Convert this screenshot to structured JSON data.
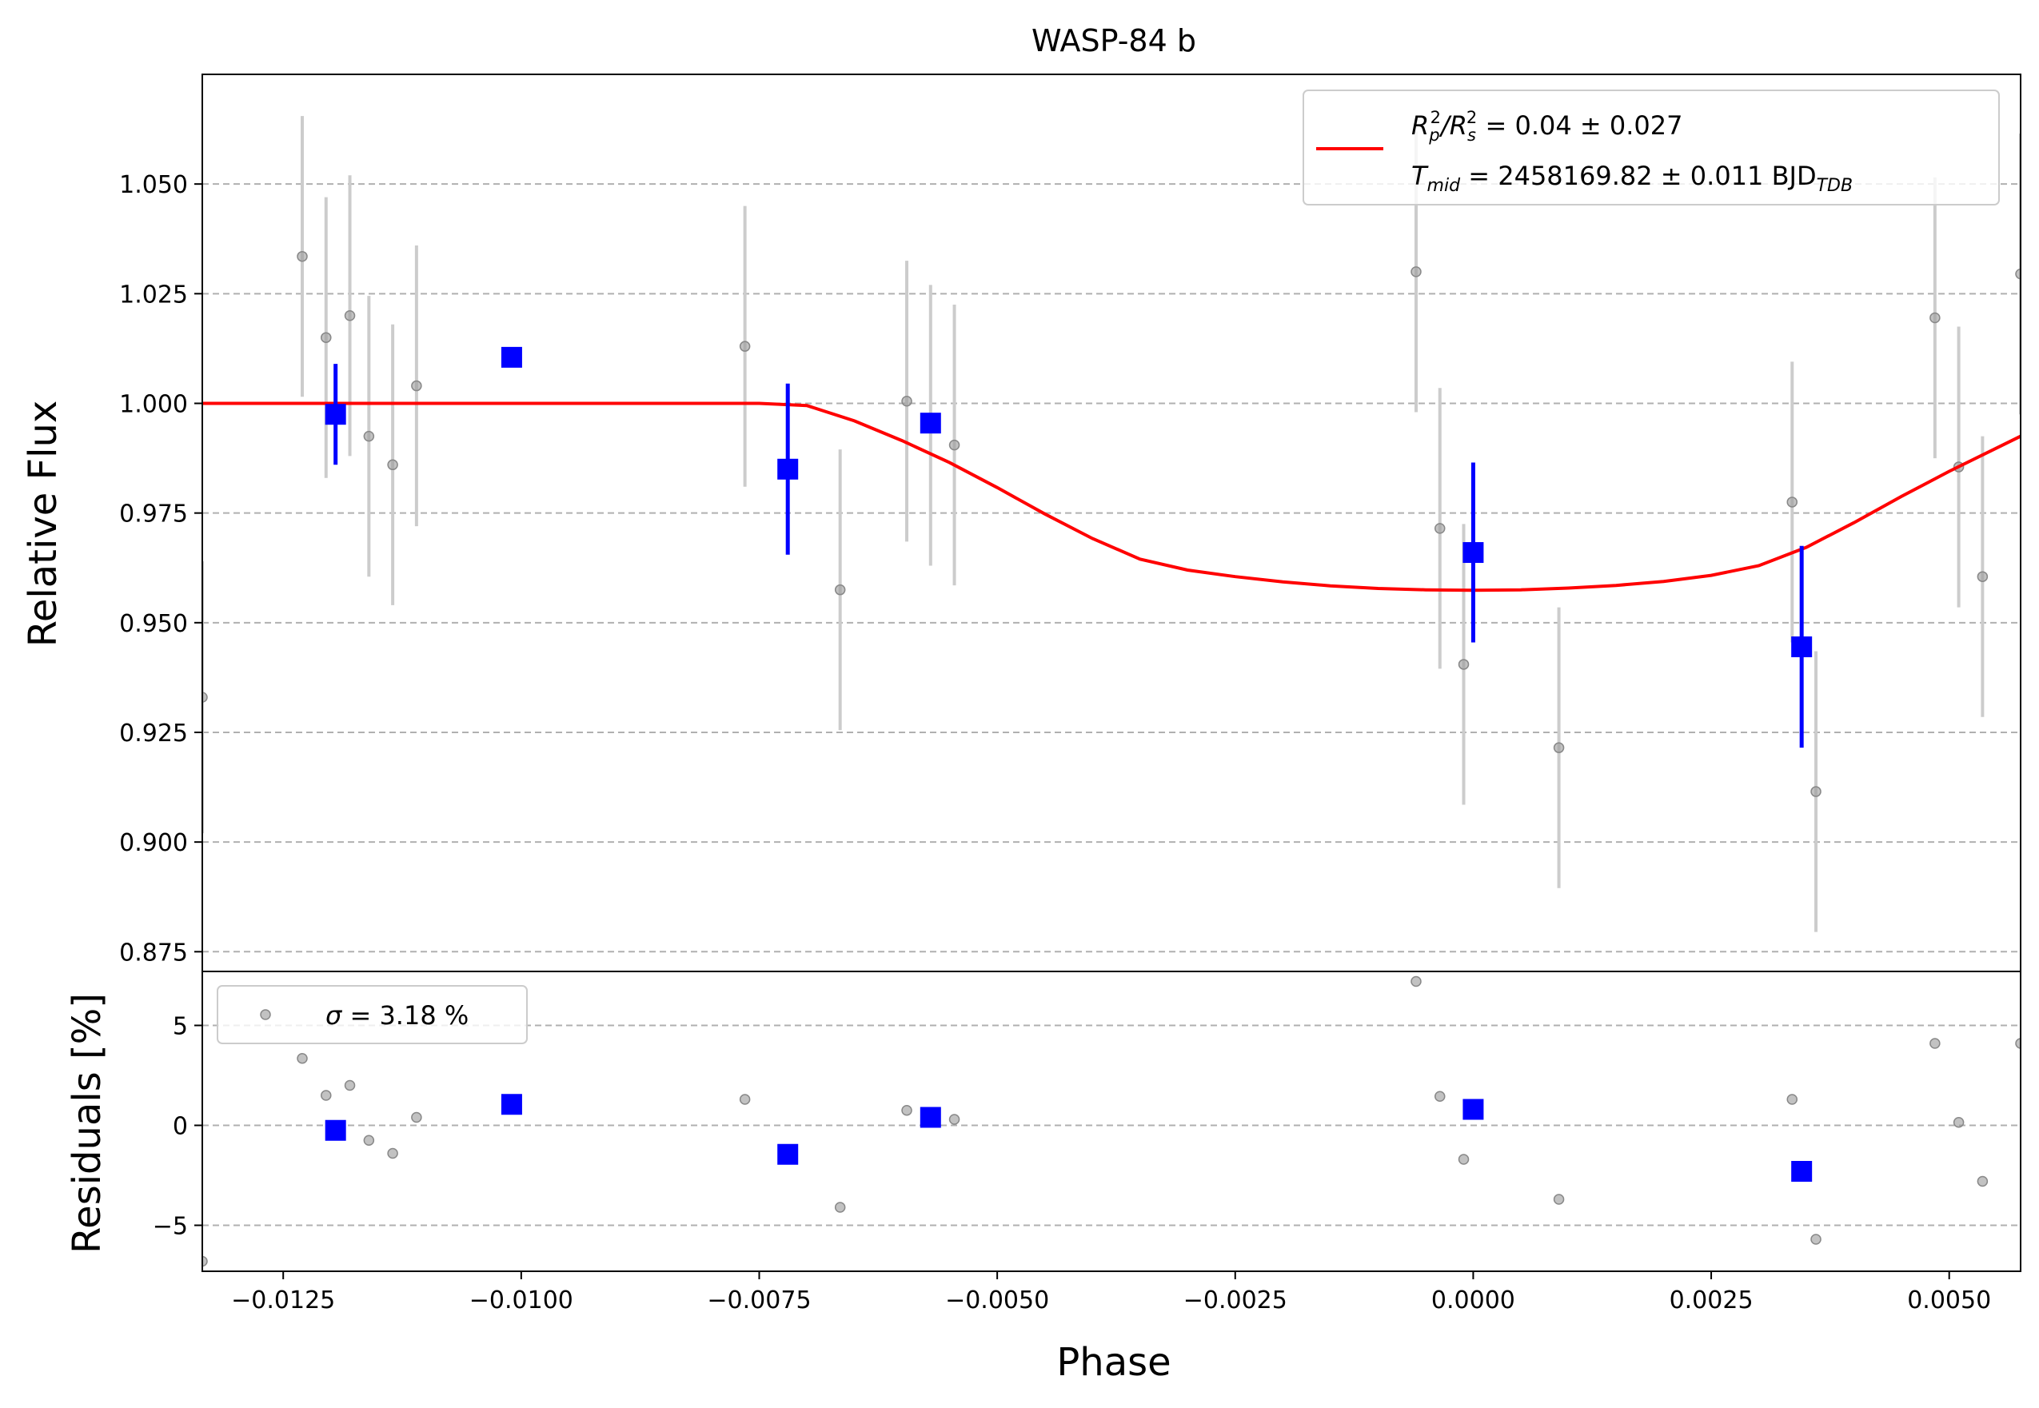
{
  "chart_data": {
    "type": "scatter",
    "title": "WASP-84 b",
    "xlabel": "Phase",
    "colors": {
      "raw": "#999999",
      "raw_err": "#cccccc",
      "binned": "#0000ff",
      "model": "#ff0000",
      "grid": "#b0b0b0"
    },
    "xlim": [
      -0.01335,
      0.00575
    ],
    "x_ticks": [
      -0.0125,
      -0.01,
      -0.0075,
      -0.005,
      -0.0025,
      0.0,
      0.0025,
      0.005
    ],
    "x_tick_labels": [
      "−0.0125",
      "−0.0100",
      "−0.0075",
      "−0.0050",
      "−0.0025",
      "0.0000",
      "0.0025",
      "0.0050"
    ],
    "top_panel": {
      "ylabel": "Relative Flux",
      "ylim": [
        0.8705,
        1.075
      ],
      "y_ticks": [
        0.875,
        0.9,
        0.925,
        0.95,
        0.975,
        1.0,
        1.025,
        1.05
      ],
      "y_tick_labels": [
        "0.875",
        "0.900",
        "0.925",
        "0.950",
        "0.975",
        "1.000",
        "1.025",
        "1.050"
      ],
      "raw_points": [
        {
          "x": -0.01335,
          "y": 0.933,
          "err": 0.031
        },
        {
          "x": -0.0123,
          "y": 1.0335,
          "err": 0.032
        },
        {
          "x": -0.01205,
          "y": 1.015,
          "err": 0.032
        },
        {
          "x": -0.0118,
          "y": 1.02,
          "err": 0.032
        },
        {
          "x": -0.0116,
          "y": 0.9925,
          "err": 0.032
        },
        {
          "x": -0.01135,
          "y": 0.986,
          "err": 0.032
        },
        {
          "x": -0.0111,
          "y": 1.004,
          "err": 0.032
        },
        {
          "x": -0.00765,
          "y": 1.013,
          "err": 0.032
        },
        {
          "x": -0.00665,
          "y": 0.9575,
          "err": 0.032
        },
        {
          "x": -0.00595,
          "y": 1.0005,
          "err": 0.032
        },
        {
          "x": -0.0057,
          "y": 0.995,
          "err": 0.032
        },
        {
          "x": -0.00545,
          "y": 0.9905,
          "err": 0.032
        },
        {
          "x": -0.0006,
          "y": 1.03,
          "err": 0.032
        },
        {
          "x": -0.00035,
          "y": 0.9715,
          "err": 0.032
        },
        {
          "x": -0.0001,
          "y": 0.9405,
          "err": 0.032
        },
        {
          "x": 0.0009,
          "y": 0.9215,
          "err": 0.032
        },
        {
          "x": 0.00335,
          "y": 0.9775,
          "err": 0.032
        },
        {
          "x": 0.0036,
          "y": 0.9115,
          "err": 0.032
        },
        {
          "x": 0.00485,
          "y": 1.0195,
          "err": 0.032
        },
        {
          "x": 0.0051,
          "y": 0.9855,
          "err": 0.032
        },
        {
          "x": 0.00535,
          "y": 0.9605,
          "err": 0.032
        },
        {
          "x": 0.00575,
          "y": 1.0295,
          "err": 0.032
        }
      ],
      "binned_points": [
        {
          "x": -0.01195,
          "y": 0.9975,
          "err": 0.0115
        },
        {
          "x": -0.0101,
          "y": 1.0105,
          "err": 0.0
        },
        {
          "x": -0.0072,
          "y": 0.985,
          "err": 0.0195
        },
        {
          "x": -0.0057,
          "y": 0.9955,
          "err": 0.0
        },
        {
          "x": -0.0,
          "y": 0.966,
          "err": 0.0205
        },
        {
          "x": 0.00345,
          "y": 0.9445,
          "err": 0.023
        }
      ],
      "model_curve": [
        [
          -0.01335,
          1.0
        ],
        [
          -0.0075,
          1.0
        ],
        [
          -0.007,
          0.9995
        ],
        [
          -0.0065,
          0.996
        ],
        [
          -0.006,
          0.9915
        ],
        [
          -0.0055,
          0.9865
        ],
        [
          -0.005,
          0.9808
        ],
        [
          -0.0045,
          0.9748
        ],
        [
          -0.004,
          0.9692
        ],
        [
          -0.0035,
          0.9645
        ],
        [
          -0.003,
          0.962
        ],
        [
          -0.0025,
          0.9605
        ],
        [
          -0.002,
          0.9593
        ],
        [
          -0.0015,
          0.9584
        ],
        [
          -0.001,
          0.9578
        ],
        [
          -0.0005,
          0.9575
        ],
        [
          0.0,
          0.9574
        ],
        [
          0.0005,
          0.9575
        ],
        [
          0.001,
          0.9579
        ],
        [
          0.0015,
          0.9585
        ],
        [
          0.002,
          0.9594
        ],
        [
          0.0025,
          0.9608
        ],
        [
          0.003,
          0.963
        ],
        [
          0.0035,
          0.9672
        ],
        [
          0.004,
          0.9728
        ],
        [
          0.0045,
          0.9788
        ],
        [
          0.005,
          0.9845
        ],
        [
          0.00575,
          0.9925
        ]
      ],
      "legend": {
        "line1_main": "R",
        "line1_a": "p",
        "line1_b": "2",
        "line1_sep": "/R",
        "line1_c": "s",
        "line1_d": "2",
        "line1_rest": " = 0.04 ± 0.027",
        "line2_main": "T",
        "line2_sub": "mid",
        "line2_rest": " = 2458169.82 ± 0.011 BJD",
        "line2_sub2": "TDB"
      }
    },
    "bottom_panel": {
      "ylabel": "Residuals [%]",
      "ylim": [
        -7.3,
        7.7
      ],
      "y_ticks": [
        -5,
        0,
        5
      ],
      "y_tick_labels": [
        "−5",
        "0",
        "5"
      ],
      "raw_points": [
        {
          "x": -0.01335,
          "y": -6.8
        },
        {
          "x": -0.0123,
          "y": 3.35
        },
        {
          "x": -0.01205,
          "y": 1.5
        },
        {
          "x": -0.0118,
          "y": 2.0
        },
        {
          "x": -0.0116,
          "y": -0.75
        },
        {
          "x": -0.01135,
          "y": -1.4
        },
        {
          "x": -0.0111,
          "y": 0.4
        },
        {
          "x": -0.00765,
          "y": 1.3
        },
        {
          "x": -0.00665,
          "y": -4.1
        },
        {
          "x": -0.00595,
          "y": 0.75
        },
        {
          "x": -0.00545,
          "y": 0.3
        },
        {
          "x": -0.0006,
          "y": 7.2
        },
        {
          "x": -0.00035,
          "y": 1.45
        },
        {
          "x": -0.0001,
          "y": -1.7
        },
        {
          "x": 0.0009,
          "y": -3.7
        },
        {
          "x": 0.00335,
          "y": 1.3
        },
        {
          "x": 0.0036,
          "y": -5.7
        },
        {
          "x": 0.00485,
          "y": 4.1
        },
        {
          "x": 0.0051,
          "y": 0.15
        },
        {
          "x": 0.00535,
          "y": -2.8
        },
        {
          "x": 0.00575,
          "y": 4.1
        }
      ],
      "binned_points": [
        {
          "x": -0.01195,
          "y": -0.25
        },
        {
          "x": -0.0101,
          "y": 1.05
        },
        {
          "x": -0.0072,
          "y": -1.45
        },
        {
          "x": -0.0057,
          "y": 0.4
        },
        {
          "x": -0.0,
          "y": 0.8
        },
        {
          "x": 0.00345,
          "y": -2.3
        }
      ],
      "legend": {
        "label": "σ = 3.18 %",
        "sigma": "σ",
        "rest": " = 3.18 %"
      }
    }
  }
}
